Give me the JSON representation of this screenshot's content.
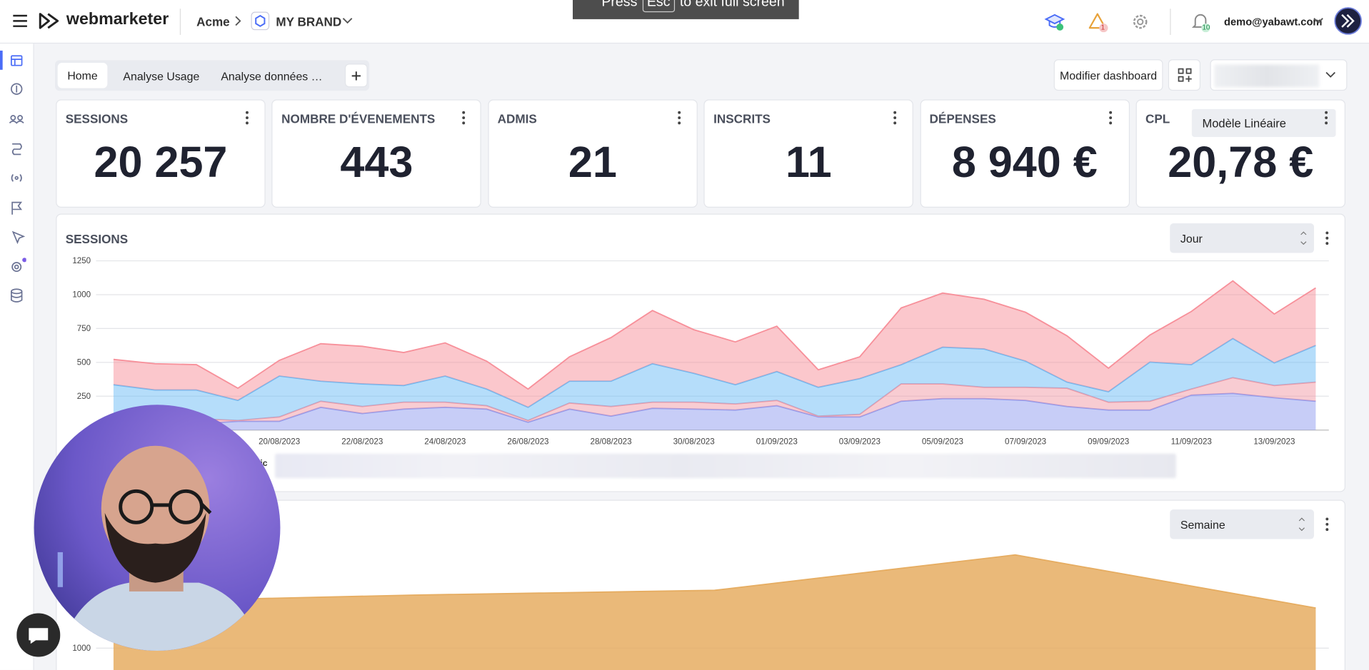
{
  "header": {
    "brand": "webmarketer",
    "org": "Acme",
    "brand_name": "MY BRAND",
    "email": "demo@yabawt.com",
    "alerts_badge": "1",
    "notifications_badge": "10"
  },
  "fullscreen_notice": {
    "before": "Press",
    "key": "Esc",
    "after": "to exit full screen"
  },
  "tabs": [
    "Home",
    "Analyse Usage",
    "Analyse données …"
  ],
  "actions": {
    "edit_dashboard": "Modifier dashboard"
  },
  "kpis": [
    {
      "title": "SESSIONS",
      "value": "20 257"
    },
    {
      "title": "NOMBRE D'ÉVENEMENTS",
      "value": "443"
    },
    {
      "title": "ADMIS",
      "value": "21"
    },
    {
      "title": "INSCRITS",
      "value": "11"
    },
    {
      "title": "DÉPENSES",
      "value": "8 940 €"
    },
    {
      "title": "CPL",
      "value": "20,78 €"
    }
  ],
  "tooltip": "Modèle Linéaire",
  "legend_fragment": "ic",
  "sessions_chart": {
    "type": "area",
    "stacked": true,
    "title": "SESSIONS",
    "period": "Jour",
    "categories": [
      null,
      null,
      null,
      null,
      "20/08/2023",
      null,
      "22/08/2023",
      null,
      "24/08/2023",
      null,
      "26/08/2023",
      null,
      "28/08/2023",
      null,
      "30/08/2023",
      null,
      "01/09/2023",
      null,
      "03/09/2023",
      null,
      "05/09/2023",
      null,
      "07/09/2023",
      null,
      "09/09/2023",
      null,
      "11/09/2023",
      null,
      "13/09/2023",
      null
    ],
    "series": [
      {
        "color": "#8f9cf0",
        "values": [
          77,
          45,
          45,
          65,
          65,
          168,
          122,
          155,
          168,
          155,
          58,
          155,
          103,
          161,
          155,
          148,
          180,
          97,
          97,
          213,
          232,
          232,
          219,
          174,
          148,
          148,
          258,
          271,
          239,
          213
        ]
      },
      {
        "color": "#f29aa6",
        "values": [
          33,
          39,
          39,
          6,
          32,
          45,
          52,
          51,
          38,
          25,
          13,
          45,
          71,
          45,
          51,
          45,
          39,
          6,
          19,
          128,
          109,
          84,
          97,
          135,
          58,
          65,
          45,
          116,
          90,
          141
        ]
      },
      {
        "color": "#6bbcf6",
        "values": [
          225,
          212,
          212,
          148,
          302,
          148,
          167,
          123,
          193,
          123,
          97,
          161,
          187,
          284,
          213,
          142,
          213,
          213,
          264,
          142,
          271,
          283,
          193,
          45,
          77,
          289,
          180,
          289,
          167,
          271
        ]
      },
      {
        "color": "#f7909a",
        "values": [
          187,
          194,
          187,
          90,
          116,
          277,
          278,
          244,
          245,
          206,
          135,
          180,
          322,
          393,
          322,
          316,
          335,
          129,
          161,
          419,
          400,
          367,
          361,
          342,
          174,
          200,
          393,
          426,
          361,
          425
        ]
      }
    ],
    "ylim": [
      0,
      1250
    ],
    "yticks": [
      250,
      500,
      750,
      1000,
      1250
    ],
    "grid": true
  },
  "weekly_chart": {
    "type": "area",
    "period": "Semaine",
    "color": "#e6ad62",
    "values": [
      1340,
      1390,
      1425,
      1685,
      1295
    ],
    "ylim": [
      1000,
      1750
    ],
    "yticks": [
      1000
    ],
    "grid": true
  }
}
